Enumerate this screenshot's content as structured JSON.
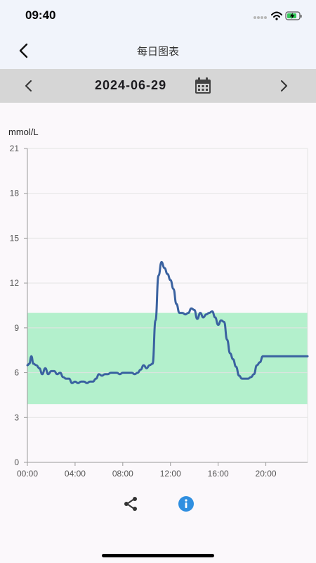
{
  "status_bar": {
    "time": "09:40",
    "icons": [
      "signal-dots-icon",
      "wifi-icon",
      "battery-charging-icon"
    ],
    "battery_color": "#34c759"
  },
  "app_bar": {
    "title": "每日图表",
    "back_icon": "chevron-left-icon"
  },
  "date_nav": {
    "date": "2024-06-29",
    "prev_icon": "chevron-left-icon",
    "next_icon": "chevron-right-icon",
    "calendar_icon": "calendar-icon"
  },
  "chart_data": {
    "type": "line",
    "ylabel": "mmol/L",
    "xlabel": "",
    "ylim": [
      0,
      21
    ],
    "xlim": [
      0,
      1410
    ],
    "yticks": [
      "0",
      "3",
      "6",
      "9",
      "12",
      "15",
      "18",
      "21"
    ],
    "xticks": [
      "00:00",
      "04:00",
      "08:00",
      "12:00",
      "16:00",
      "20:00"
    ],
    "target_range": [
      3.9,
      10.0
    ],
    "target_range_color": "#b3f0cc",
    "line_color": "#3a62a0",
    "grid": true,
    "series": [
      {
        "x": [
          0,
          10,
          20,
          30,
          45,
          60,
          75,
          90,
          105,
          120,
          135,
          150,
          165,
          180,
          195,
          210,
          225,
          240,
          255,
          270,
          285,
          300,
          315,
          330,
          345,
          360,
          375,
          390,
          405,
          420,
          435,
          450,
          465,
          480,
          495,
          510,
          525,
          540,
          555,
          570,
          585,
          600,
          615,
          630,
          645,
          660,
          675,
          690,
          705,
          720,
          735,
          750,
          765,
          780,
          795,
          810,
          825,
          840,
          855,
          870,
          885,
          900,
          915,
          930,
          945,
          960,
          975,
          990,
          1005,
          1020,
          1035,
          1050,
          1065,
          1080,
          1095,
          1110,
          1125,
          1140,
          1155,
          1170,
          1185,
          1200,
          1215,
          1230,
          1245,
          1260,
          1275,
          1290,
          1305,
          1320,
          1335,
          1350,
          1365,
          1380,
          1395,
          1410
        ],
        "values": [
          6.5,
          6.6,
          7.1,
          6.6,
          6.5,
          6.3,
          5.9,
          6.3,
          5.9,
          6.1,
          6.1,
          5.9,
          6.0,
          5.7,
          5.6,
          5.6,
          5.3,
          5.4,
          5.3,
          5.4,
          5.4,
          5.3,
          5.4,
          5.4,
          5.6,
          5.9,
          5.8,
          5.9,
          5.9,
          6.0,
          6.0,
          6.0,
          5.9,
          6.0,
          6.0,
          6.0,
          6.0,
          5.9,
          6.0,
          6.2,
          6.5,
          6.3,
          6.5,
          6.6,
          9.5,
          12.5,
          13.4,
          13.0,
          12.6,
          12.2,
          11.6,
          10.6,
          10.0,
          10.0,
          9.9,
          10.0,
          10.3,
          10.2,
          9.6,
          10.0,
          9.7,
          9.9,
          10.0,
          10.1,
          9.7,
          9.2,
          9.5,
          9.4,
          8.2,
          7.3,
          6.9,
          6.4,
          5.8,
          5.6,
          5.6,
          5.6,
          5.7,
          5.9,
          6.5,
          6.7,
          7.1,
          7.1,
          7.1,
          7.1,
          7.1,
          7.1,
          7.1,
          7.1,
          7.1,
          7.1,
          7.1,
          7.1,
          7.1,
          7.1,
          7.1,
          7.1
        ]
      }
    ]
  },
  "actions": {
    "share_icon": "share-icon",
    "info_icon": "info-icon",
    "info_color": "#2f8fe0"
  }
}
